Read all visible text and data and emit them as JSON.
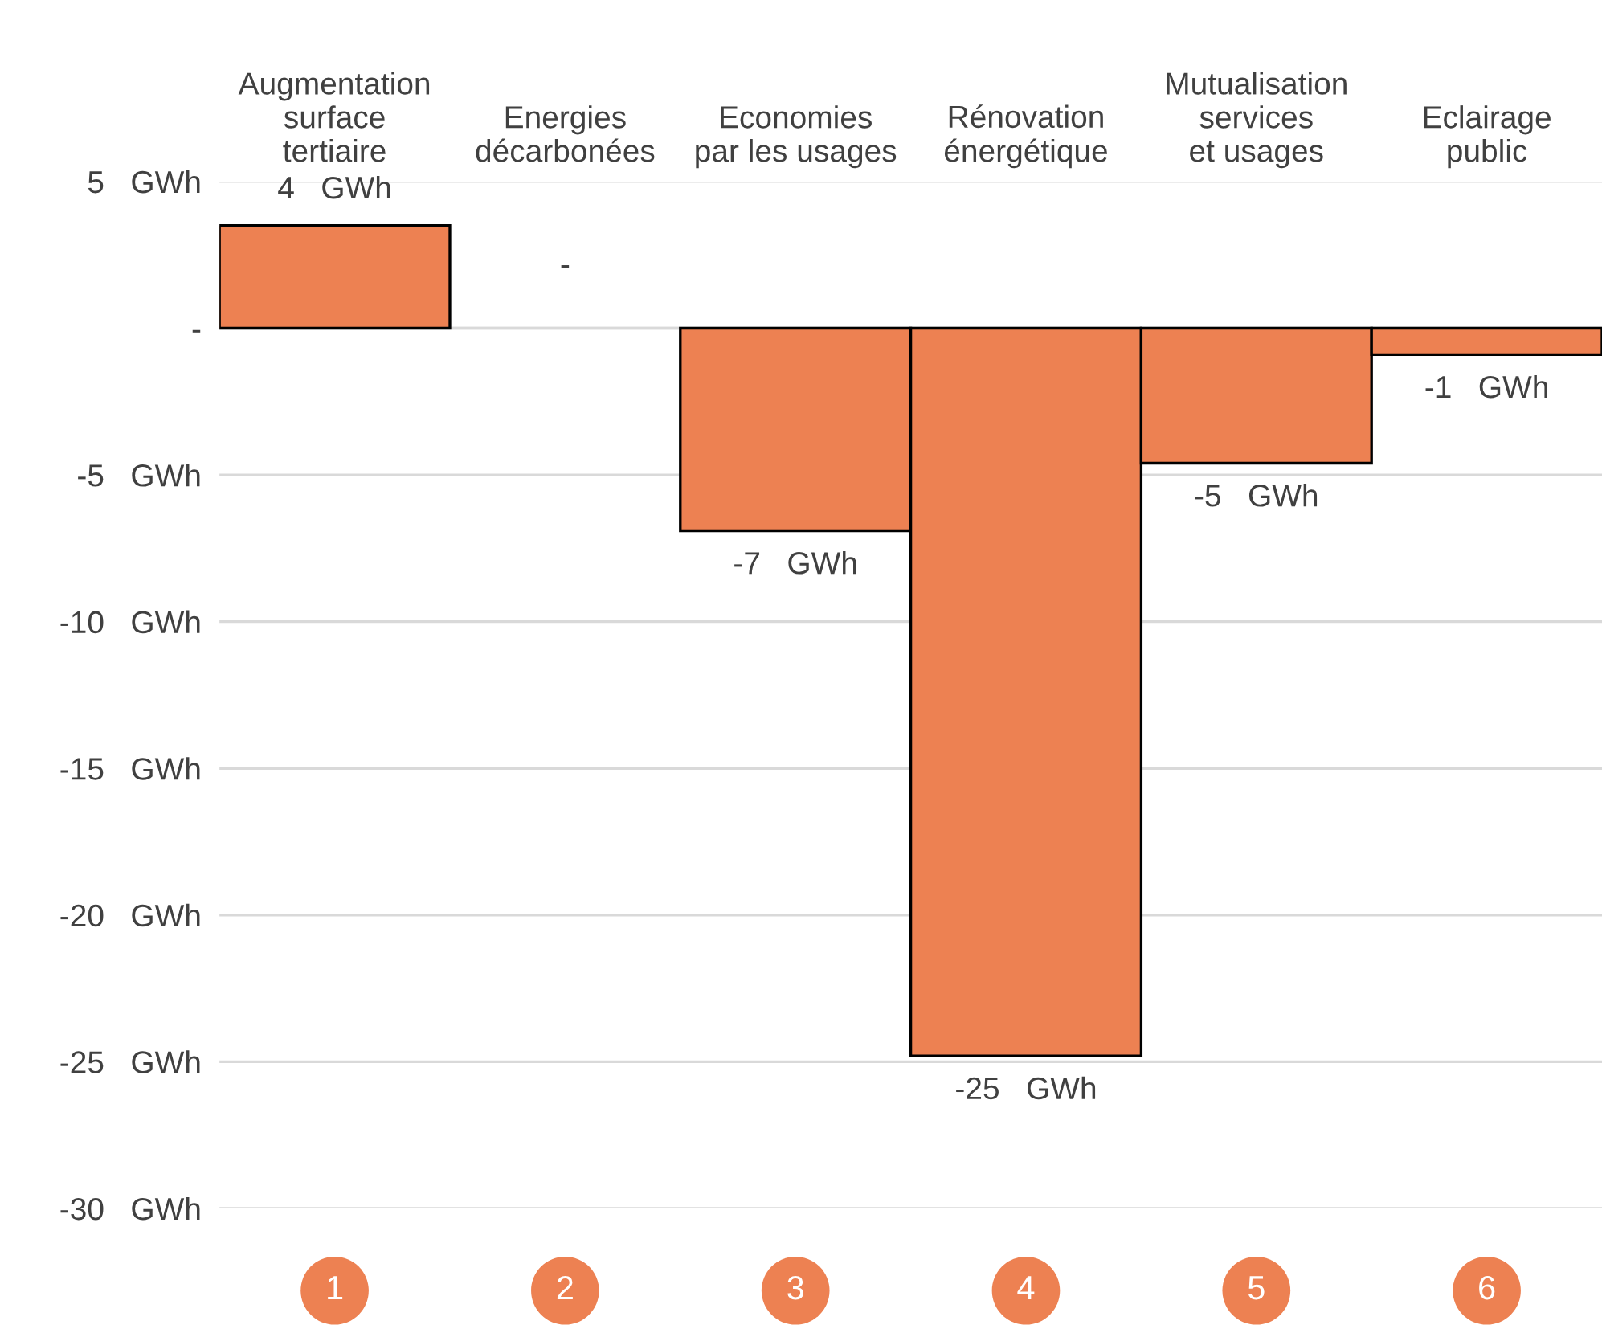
{
  "chart_data": {
    "type": "bar",
    "categories": [
      "Augmentation\nsurface\ntertiaire",
      "Energies\ndécarbonées",
      "Economies\npar les usages",
      "Rénovation\nénergétique",
      "Mutualisation\nservices\net usages",
      "Eclairage\npublic"
    ],
    "values": [
      3.5,
      0,
      -6.9,
      -24.8,
      -4.6,
      -0.9
    ],
    "value_labels": [
      "4   GWh",
      "-",
      "-7   GWh",
      "-25   GWh",
      "-5   GWh",
      "-1   GWh"
    ],
    "color": "#ed8152",
    "ylim": [
      -30,
      5
    ],
    "yticks": [
      {
        "value": 5,
        "label": "5   GWh"
      },
      {
        "value": 0,
        "label": "-"
      },
      {
        "value": -5,
        "label": "-5   GWh"
      },
      {
        "value": -10,
        "label": "-10   GWh"
      },
      {
        "value": -15,
        "label": "-15   GWh"
      },
      {
        "value": -20,
        "label": "-20   GWh"
      },
      {
        "value": -25,
        "label": "-25   GWh"
      },
      {
        "value": -30,
        "label": "-30   GWh"
      }
    ],
    "grid": "y",
    "legend": false,
    "annotations": [
      "1",
      "2",
      "3",
      "4",
      "5",
      "6"
    ]
  }
}
